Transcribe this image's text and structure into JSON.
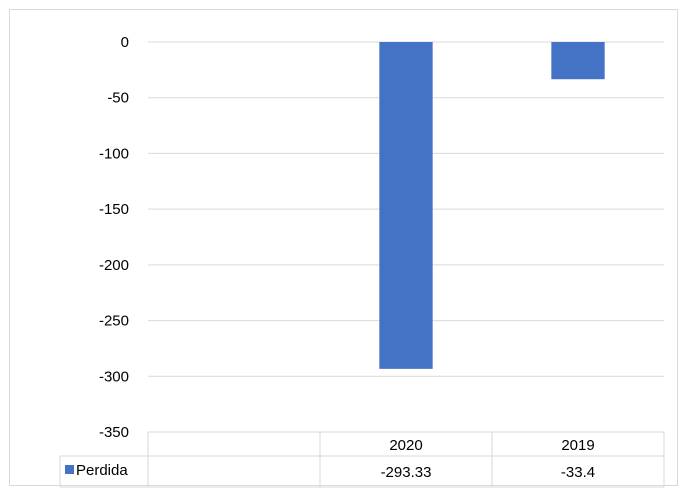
{
  "chart_data": {
    "type": "bar",
    "categories": [
      "",
      "2020",
      "2019"
    ],
    "series": [
      {
        "name": "Perdida",
        "values": [
          null,
          -293.33,
          -33.4
        ],
        "labels": [
          "",
          "-293.33",
          "-33.4"
        ]
      }
    ],
    "ylim": [
      -350,
      0
    ],
    "yticks": [
      "0",
      "-50",
      "-100",
      "-150",
      "-200",
      "-250",
      "-300",
      "-350"
    ],
    "grid": true,
    "data_table": true,
    "legend": "in-table",
    "colors": {
      "series": "#4472c4",
      "grid": "#d9d9d9"
    }
  }
}
